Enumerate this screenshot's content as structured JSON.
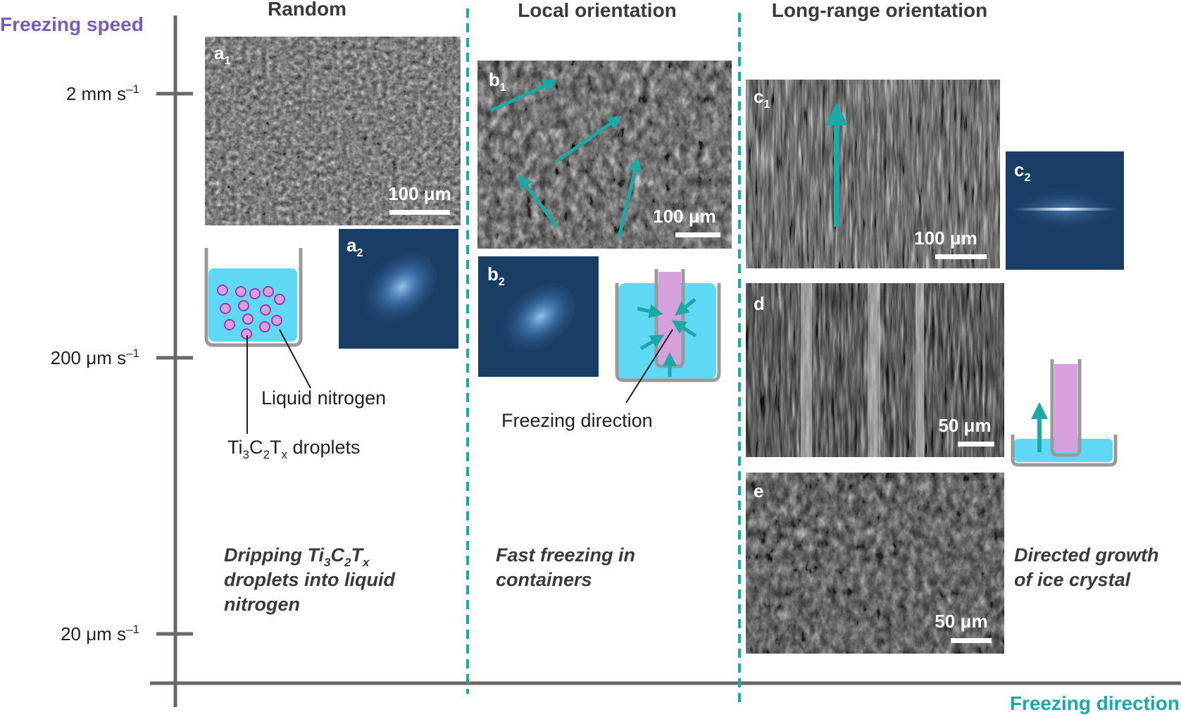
{
  "axes": {
    "y_title": "Freezing speed",
    "x_title": "Freezing direction",
    "ticks": [
      {
        "label": "2 mm s",
        "sup": "–1"
      },
      {
        "label": "200 μm s",
        "sup": "–1"
      },
      {
        "label": "20 μm s",
        "sup": "–1"
      }
    ]
  },
  "columns": [
    {
      "title": "Random"
    },
    {
      "title": "Local orientation"
    },
    {
      "title": "Long-range orientation"
    }
  ],
  "panels": {
    "a1": {
      "letter": "a",
      "sub": "1",
      "scale": "100 μm"
    },
    "a2": {
      "letter": "a",
      "sub": "2"
    },
    "b1": {
      "letter": "b",
      "sub": "1",
      "scale": "100 μm"
    },
    "b2": {
      "letter": "b",
      "sub": "2"
    },
    "c1": {
      "letter": "c",
      "sub": "1",
      "scale": "100 μm"
    },
    "c2": {
      "letter": "c",
      "sub": "2"
    },
    "d": {
      "letter": "d",
      "scale": "50 μm"
    },
    "e": {
      "letter": "e",
      "scale": "50 μm"
    }
  },
  "labels": {
    "liquid_nitrogen": "Liquid nitrogen",
    "droplets": {
      "p1": "Ti",
      "s1": "3",
      "p2": "C",
      "s2": "2",
      "p3": "T",
      "s3": "x",
      "p4": " droplets"
    },
    "freezing_direction": "Freezing direction"
  },
  "methods": {
    "random": {
      "l1": {
        "p1": "Dripping Ti",
        "s1": "3",
        "p2": "C",
        "s2": "2",
        "p3": "T",
        "s3": "x"
      },
      "l2": "droplets into liquid",
      "l3": "nitrogen"
    },
    "local": {
      "l1": "Fast freezing in",
      "l2": "containers"
    },
    "long": {
      "l1": "Directed growth",
      "l2": "of ice crystal"
    }
  },
  "colors": {
    "speed_title": "#7a5cb4",
    "teal": "#1aa9a5",
    "axis": "#6e6666",
    "nitrogen": "#5fd8f5",
    "droplet_fill": "#d7a0dc",
    "droplet_edge": "#a13ab0",
    "tube_fill": "#d7a0dc",
    "beaker": "#9a9a9a",
    "fft_bg": "#1a3d66"
  }
}
